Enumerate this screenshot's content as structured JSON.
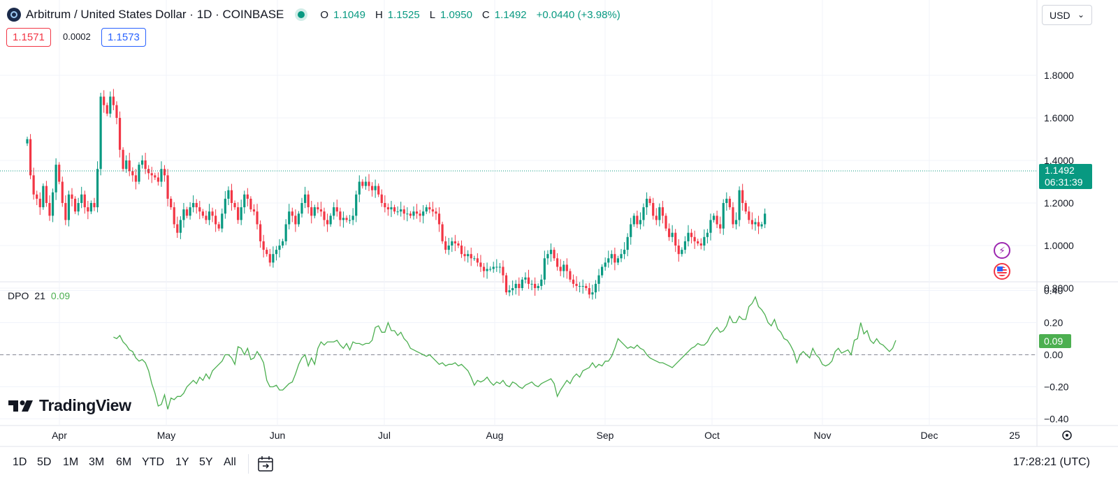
{
  "header": {
    "symbol_title": "Arbitrum / United States Dollar · 1D · COINBASE",
    "ohlc": {
      "o_label": "O",
      "o": "1.1049",
      "h_label": "H",
      "h": "1.1525",
      "l_label": "L",
      "l": "1.0950",
      "c_label": "C",
      "c": "1.1492",
      "change": "+0.0440 (+3.98%)"
    },
    "sell_price": "1.1571",
    "spread": "0.0002",
    "buy_price": "1.1573",
    "currency": "USD"
  },
  "price_axis": {
    "current_price": "1.1492",
    "countdown": "06:31:39"
  },
  "indicator": {
    "name": "DPO",
    "length": "21",
    "value": "0.09",
    "current_value": "0.09"
  },
  "branding": {
    "logo_text": "TradingView"
  },
  "timeframes": [
    "1D",
    "5D",
    "1M",
    "3M",
    "6M",
    "YTD",
    "1Y",
    "5Y",
    "All"
  ],
  "clock": "17:28:21 (UTC)",
  "colors": {
    "up": "#089981",
    "down": "#f23645",
    "dpo_line": "#4caf50",
    "grid": "#f0f3fa"
  },
  "chart_data": [
    {
      "type": "candlestick",
      "title": "Arbitrum / United States Dollar · 1D · COINBASE",
      "y_ticks": [
        "1.8000",
        "1.6000",
        "1.4000",
        "1.2000",
        "1.0000",
        "0.8000"
      ],
      "x_ticks": [
        "Apr",
        "May",
        "Jun",
        "Jul",
        "Aug",
        "Sep",
        "Oct",
        "Nov",
        "Dec",
        "25"
      ],
      "ylim": [
        0.68,
        1.86
      ],
      "close_series": [
        1.5,
        1.33,
        1.24,
        1.22,
        1.18,
        1.28,
        1.2,
        1.14,
        1.25,
        1.38,
        1.3,
        1.2,
        1.12,
        1.24,
        1.22,
        1.16,
        1.2,
        1.24,
        1.18,
        1.16,
        1.2,
        1.18,
        1.36,
        1.7,
        1.66,
        1.62,
        1.7,
        1.66,
        1.6,
        1.45,
        1.36,
        1.4,
        1.35,
        1.33,
        1.3,
        1.38,
        1.4,
        1.36,
        1.34,
        1.33,
        1.32,
        1.3,
        1.36,
        1.33,
        1.22,
        1.18,
        1.1,
        1.06,
        1.12,
        1.17,
        1.14,
        1.18,
        1.2,
        1.18,
        1.16,
        1.14,
        1.12,
        1.16,
        1.14,
        1.1,
        1.08,
        1.15,
        1.22,
        1.26,
        1.2,
        1.18,
        1.12,
        1.18,
        1.24,
        1.22,
        1.17,
        1.16,
        1.1,
        1.02,
        0.98,
        0.96,
        0.92,
        0.96,
        0.98,
        1.0,
        1.02,
        1.1,
        1.16,
        1.14,
        1.1,
        1.15,
        1.2,
        1.24,
        1.18,
        1.14,
        1.18,
        1.17,
        1.16,
        1.12,
        1.1,
        1.14,
        1.18,
        1.16,
        1.12,
        1.13,
        1.12,
        1.12,
        1.14,
        1.24,
        1.3,
        1.28,
        1.3,
        1.28,
        1.26,
        1.28,
        1.24,
        1.2,
        1.18,
        1.17,
        1.18,
        1.16,
        1.16,
        1.17,
        1.15,
        1.15,
        1.14,
        1.16,
        1.15,
        1.14,
        1.16,
        1.18,
        1.17,
        1.16,
        1.15,
        1.1,
        1.02,
        0.98,
        1.0,
        1.02,
        1.01,
        1.0,
        0.96,
        0.95,
        0.96,
        0.94,
        0.94,
        0.92,
        0.9,
        0.88,
        0.89,
        0.89,
        0.9,
        0.9,
        0.9,
        0.86,
        0.78,
        0.79,
        0.8,
        0.82,
        0.8,
        0.84,
        0.85,
        0.82,
        0.82,
        0.8,
        0.81,
        0.84,
        0.94,
        0.96,
        0.98,
        0.94,
        0.9,
        0.88,
        0.91,
        0.88,
        0.84,
        0.82,
        0.81,
        0.81,
        0.81,
        0.8,
        0.77,
        0.78,
        0.82,
        0.86,
        0.9,
        0.92,
        0.94,
        0.96,
        0.92,
        0.94,
        0.96,
        0.98,
        1.04,
        1.1,
        1.14,
        1.1,
        1.12,
        1.18,
        1.22,
        1.2,
        1.14,
        1.12,
        1.18,
        1.14,
        1.08,
        1.04,
        1.06,
        1.0,
        0.96,
        0.98,
        1.02,
        1.06,
        1.04,
        1.02,
        1.01,
        1.0,
        1.04,
        1.06,
        1.12,
        1.14,
        1.1,
        1.08,
        1.2,
        1.22,
        1.18,
        1.1,
        1.12,
        1.26,
        1.2,
        1.16,
        1.12,
        1.1,
        1.11,
        1.09,
        1.1,
        1.15
      ]
    },
    {
      "type": "line",
      "x_ticks": [
        "Apr",
        "May",
        "Jun",
        "Jul",
        "Aug",
        "Sep",
        "Oct",
        "Nov",
        "Dec",
        "25"
      ],
      "y_ticks": [
        "0.40",
        "0.20",
        "0.00",
        "−0.20",
        "−0.40"
      ],
      "ylim": [
        -0.42,
        0.42
      ],
      "series": [
        {
          "name": "DPO",
          "start_index": 27,
          "values": [
            0.11,
            0.1,
            0.12,
            0.08,
            0.06,
            0.03,
            0.02,
            -0.02,
            -0.04,
            -0.03,
            -0.05,
            -0.1,
            -0.18,
            -0.24,
            -0.32,
            -0.31,
            -0.25,
            -0.34,
            -0.27,
            -0.28,
            -0.26,
            -0.26,
            -0.24,
            -0.2,
            -0.18,
            -0.16,
            -0.18,
            -0.14,
            -0.16,
            -0.12,
            -0.15,
            -0.1,
            -0.08,
            -0.06,
            -0.04,
            0.0,
            0.0,
            -0.02,
            -0.06,
            0.05,
            0.04,
            0.0,
            0.04,
            -0.03,
            -0.02,
            0.02,
            -0.01,
            -0.05,
            -0.16,
            -0.2,
            -0.2,
            -0.19,
            -0.22,
            -0.22,
            -0.2,
            -0.18,
            -0.17,
            -0.12,
            -0.06,
            -0.02,
            0.0,
            -0.07,
            -0.02,
            -0.06,
            0.04,
            0.08,
            0.06,
            0.08,
            0.08,
            0.08,
            0.09,
            0.06,
            0.04,
            0.07,
            0.03,
            0.08,
            0.07,
            0.07,
            0.06,
            0.07,
            0.07,
            0.09,
            0.17,
            0.18,
            0.14,
            0.14,
            0.2,
            0.15,
            0.15,
            0.12,
            0.14,
            0.1,
            0.08,
            0.04,
            0.03,
            0.02,
            0.01,
            0.0,
            -0.01,
            0.0,
            -0.02,
            -0.04,
            -0.06,
            -0.05,
            -0.07,
            -0.06,
            -0.06,
            -0.05,
            -0.07,
            -0.06,
            -0.08,
            -0.1,
            -0.14,
            -0.19,
            -0.16,
            -0.17,
            -0.16,
            -0.14,
            -0.17,
            -0.19,
            -0.17,
            -0.18,
            -0.16,
            -0.19,
            -0.2,
            -0.17,
            -0.18,
            -0.2,
            -0.21,
            -0.19,
            -0.18,
            -0.17,
            -0.19,
            -0.2,
            -0.18,
            -0.17,
            -0.16,
            -0.15,
            -0.18,
            -0.26,
            -0.22,
            -0.19,
            -0.16,
            -0.18,
            -0.14,
            -0.12,
            -0.14,
            -0.1,
            -0.09,
            -0.08,
            -0.05,
            -0.08,
            -0.06,
            -0.07,
            -0.04,
            -0.04,
            -0.01,
            0.04,
            0.1,
            0.08,
            0.06,
            0.04,
            0.05,
            0.04,
            0.06,
            0.04,
            0.03,
            0.0,
            -0.02,
            -0.03,
            -0.04,
            -0.05,
            -0.05,
            -0.06,
            -0.07,
            -0.08,
            -0.06,
            -0.04,
            -0.02,
            0.0,
            0.02,
            0.04,
            0.05,
            0.07,
            0.06,
            0.06,
            0.08,
            0.12,
            0.15,
            0.17,
            0.14,
            0.15,
            0.18,
            0.24,
            0.2,
            0.2,
            0.24,
            0.22,
            0.22,
            0.3,
            0.32,
            0.36,
            0.3,
            0.28,
            0.25,
            0.2,
            0.18,
            0.22,
            0.16,
            0.14,
            0.1,
            0.09,
            0.06,
            0.02,
            -0.05,
            0.0,
            0.02,
            0.0,
            -0.02,
            0.04,
            0.0,
            -0.02,
            -0.06,
            -0.07,
            -0.06,
            -0.04,
            0.02,
            0.04,
            0.01,
            0.02,
            0.03,
            0.0,
            0.09,
            0.1,
            0.2,
            0.13,
            0.15,
            0.09,
            0.07,
            0.1,
            0.07,
            0.06,
            0.04,
            0.02,
            0.04,
            0.09
          ]
        }
      ]
    }
  ]
}
